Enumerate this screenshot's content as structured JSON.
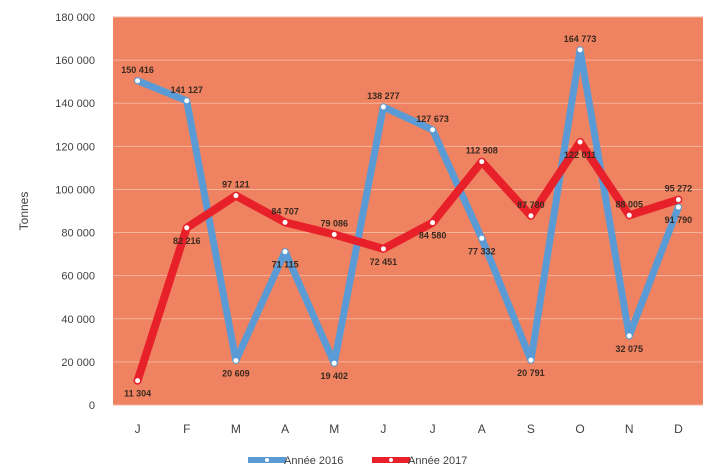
{
  "chart_data": {
    "type": "line",
    "title": "",
    "xlabel": "",
    "ylabel": "Tonnes",
    "ylim": [
      0,
      180000
    ],
    "y_ticks": [
      "0",
      "20 000",
      "40 000",
      "60 000",
      "80 000",
      "100 000",
      "120 000",
      "140 000",
      "160 000",
      "180 000"
    ],
    "categories": [
      "J",
      "F",
      "M",
      "A",
      "M",
      "J",
      "J",
      "A",
      "S",
      "O",
      "N",
      "D"
    ],
    "grid": true,
    "legend_position": "bottom",
    "plot_background": "#EF8260",
    "series": [
      {
        "name": "Année 2016",
        "color": "#5B9BD5",
        "values": [
          150416,
          141127,
          20609,
          71115,
          19402,
          138277,
          127673,
          77332,
          20791,
          164773,
          32075,
          91790
        ],
        "labels": [
          "150 416",
          "141 127",
          "20 609",
          "71 115",
          "19 402",
          "138 277",
          "127 673",
          "77 332",
          "20 791",
          "164 773",
          "32 075",
          "91 790"
        ]
      },
      {
        "name": "Année 2017",
        "color": "#E8202A",
        "values": [
          11304,
          82216,
          97121,
          84707,
          79086,
          72451,
          84580,
          112908,
          87780,
          122011,
          88005,
          95272
        ],
        "labels": [
          "11 304",
          "82 216",
          "97 121",
          "84 707",
          "79 086",
          "72 451",
          "84 580",
          "112 908",
          "87 780",
          "122 011",
          "88 005",
          "95 272"
        ]
      }
    ]
  }
}
